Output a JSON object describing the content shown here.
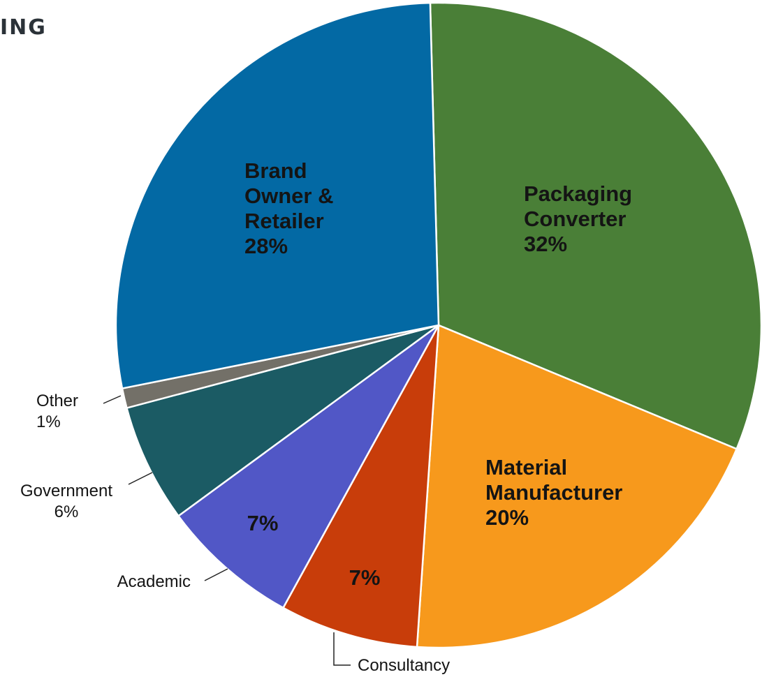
{
  "header": {
    "partial_title": "ING"
  },
  "chart_data": {
    "type": "pie",
    "title": "",
    "slices": [
      {
        "name": "Packaging Converter",
        "value": 32,
        "label_lines": [
          "Packaging",
          "Converter",
          "32%"
        ],
        "color": "#4a7f37"
      },
      {
        "name": "Material Manufacturer",
        "value": 20,
        "label_lines": [
          "Material",
          "Manufacturer",
          "20%"
        ],
        "color": "#f7991c"
      },
      {
        "name": "Consultancy",
        "value": 7,
        "label_lines": [
          "7%"
        ],
        "outer_label": [
          "Consultancy"
        ],
        "color": "#c83d0a"
      },
      {
        "name": "Academic",
        "value": 7,
        "label_lines": [
          "7%"
        ],
        "outer_label": [
          "Academic"
        ],
        "color": "#5157c6"
      },
      {
        "name": "Government",
        "value": 6,
        "outer_label": [
          "Government",
          "6%"
        ],
        "color": "#1b5b64"
      },
      {
        "name": "Other",
        "value": 1,
        "outer_label": [
          "Other",
          "1%"
        ],
        "color": "#737068"
      },
      {
        "name": "Brand Owner & Retailer",
        "value": 28,
        "label_lines": [
          "Brand",
          "Owner &",
          "Retailer",
          "28%"
        ],
        "color": "#0369a4"
      }
    ]
  }
}
